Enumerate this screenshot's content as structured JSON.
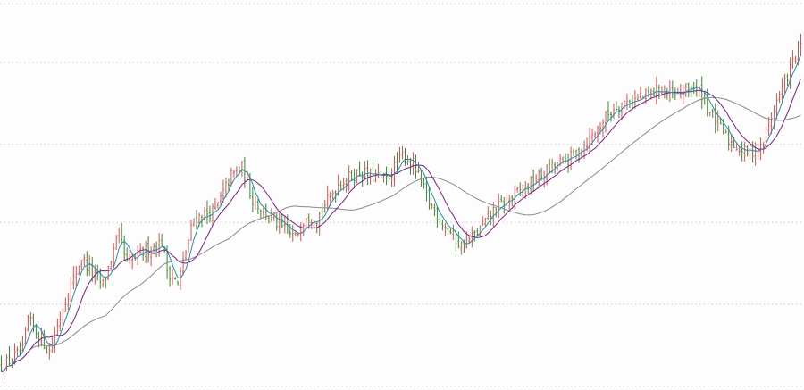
{
  "chart_data": {
    "type": "candlestick",
    "title": "",
    "xlabel": "",
    "ylabel": "",
    "grid": {
      "horizontal": true,
      "vertical": false,
      "style": "dotted"
    },
    "ylim": [
      0,
      100
    ],
    "colors": {
      "background": "#fdfdfd",
      "grid": "#c8c8c8",
      "up_bar": "#d9534f",
      "down_bar": "#3a8a2e",
      "ma_fast": "#1f8fb0",
      "ma_mid": "#7a1c8c",
      "ma_slow": "#8a8a8a"
    },
    "bar_count": 300,
    "keypoints": [
      [
        0,
        6
      ],
      [
        8,
        10
      ],
      [
        10,
        18
      ],
      [
        14,
        14
      ],
      [
        18,
        10
      ],
      [
        24,
        23
      ],
      [
        30,
        34
      ],
      [
        34,
        30
      ],
      [
        38,
        27
      ],
      [
        44,
        40
      ],
      [
        47,
        32
      ],
      [
        52,
        35
      ],
      [
        60,
        38
      ],
      [
        62,
        31
      ],
      [
        66,
        27
      ],
      [
        72,
        44
      ],
      [
        80,
        46
      ],
      [
        86,
        55
      ],
      [
        90,
        57
      ],
      [
        94,
        49
      ],
      [
        98,
        46
      ],
      [
        104,
        42
      ],
      [
        110,
        39
      ],
      [
        114,
        45
      ],
      [
        118,
        44
      ],
      [
        126,
        53
      ],
      [
        134,
        56
      ],
      [
        138,
        55
      ],
      [
        144,
        54
      ],
      [
        150,
        60
      ],
      [
        154,
        58
      ],
      [
        160,
        48
      ],
      [
        166,
        42
      ],
      [
        172,
        37
      ],
      [
        176,
        39
      ],
      [
        180,
        42
      ],
      [
        184,
        46
      ],
      [
        190,
        49
      ],
      [
        196,
        52
      ],
      [
        202,
        55
      ],
      [
        208,
        58
      ],
      [
        212,
        59
      ],
      [
        218,
        63
      ],
      [
        222,
        66
      ],
      [
        226,
        70
      ],
      [
        230,
        73
      ],
      [
        234,
        74
      ],
      [
        240,
        75
      ],
      [
        246,
        77
      ],
      [
        252,
        75
      ],
      [
        258,
        78
      ],
      [
        262,
        76
      ],
      [
        266,
        70
      ],
      [
        272,
        64
      ],
      [
        278,
        61
      ],
      [
        284,
        62
      ],
      [
        290,
        74
      ],
      [
        296,
        84
      ],
      [
        300,
        90
      ]
    ],
    "noise": 1.6,
    "ma_periods": {
      "fast": 5,
      "mid": 12,
      "slow": 40
    }
  }
}
